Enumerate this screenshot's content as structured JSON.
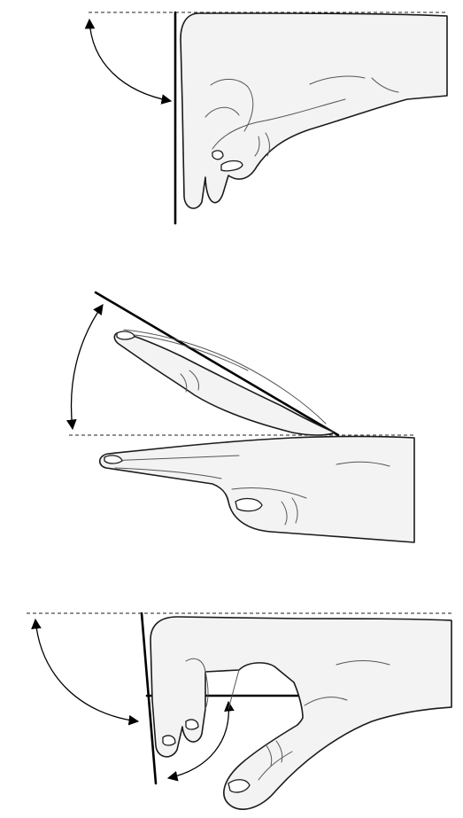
{
  "figure": {
    "panels": [
      {
        "id": "panel-1"
      },
      {
        "id": "panel-2"
      },
      {
        "id": "panel-3"
      }
    ],
    "colors": {
      "line": "#000000",
      "hand_fill": "#f3f3f3",
      "background": "#ffffff"
    }
  }
}
